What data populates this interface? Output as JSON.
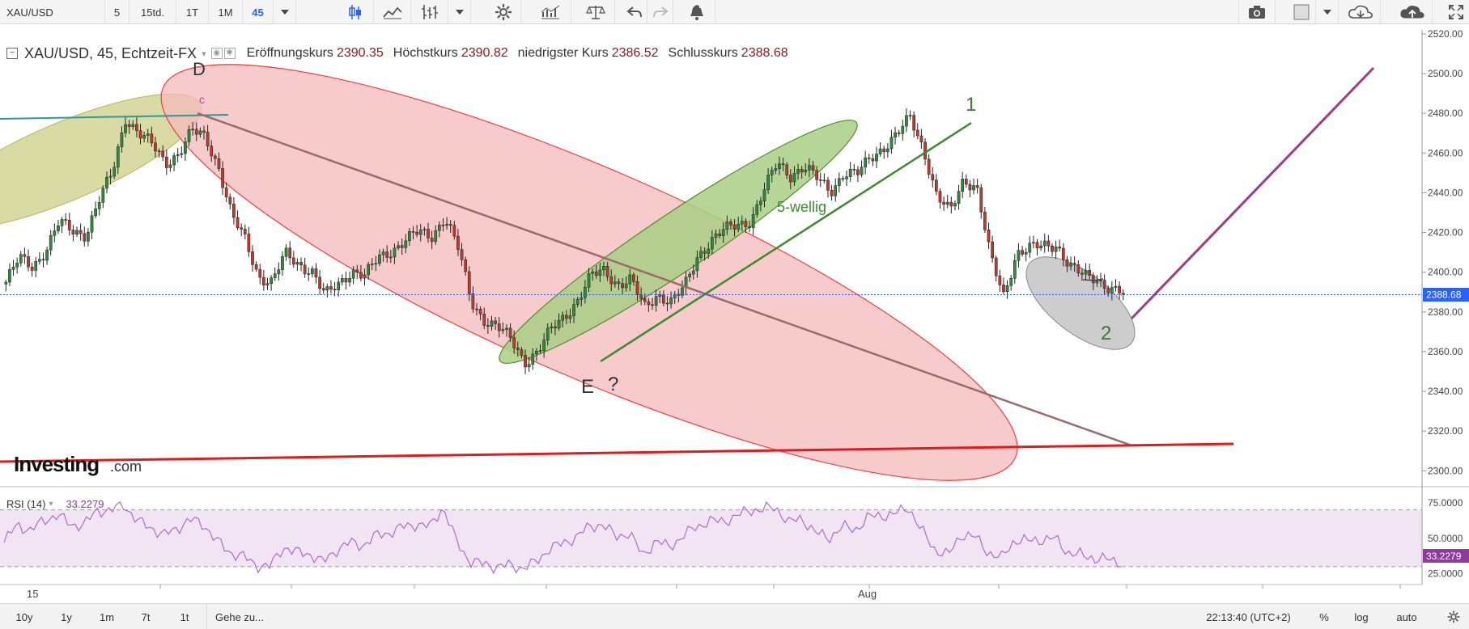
{
  "toolbar": {
    "symbol": "XAU/USD",
    "intervals": [
      "5",
      "15td.",
      "1T",
      "1M"
    ],
    "active_interval": "45",
    "icons": [
      "candles-icon",
      "line-chart-icon",
      "indicators-icon",
      "gear-icon",
      "studies-icon",
      "compare-icon",
      "undo-icon",
      "redo-icon",
      "alert-icon",
      "camera-icon",
      "layout-icon",
      "cloud-download-icon",
      "cloud-upload-icon",
      "fullscreen-icon"
    ]
  },
  "legend": {
    "symbol": "XAU/USD, 45, Echtzeit-FX",
    "open_label": "Eröffnungskurs",
    "open_value": "2390.35",
    "high_label": "Höchstkurs",
    "high_value": "2390.82",
    "low_label": "niedrigster Kurs",
    "low_value": "2386.52",
    "close_label": "Schlusskurs",
    "close_value": "2388.68"
  },
  "rsi": {
    "label": "RSI (14)",
    "value": "33.2279"
  },
  "watermark": {
    "brand": "Investing",
    "suffix": ".com"
  },
  "annotations": {
    "wave_d": "D",
    "wave_c": "c",
    "wave_e": "E",
    "question": "?",
    "wave_1": "1",
    "wave_2": "2",
    "five_wave": "5-wellig"
  },
  "bottombar": {
    "ranges": [
      "10y",
      "1y",
      "1m",
      "7t",
      "1t"
    ],
    "goto": "Gehe zu...",
    "time": "22:13:40 (UTC+2)",
    "percent": "%",
    "log": "log",
    "auto": "auto"
  },
  "colors": {
    "up_candle": "#2e8b3a",
    "down_candle": "#c0392b",
    "price_line": "#2962ff",
    "red_ellipse": "#f4b9b9",
    "green_ellipse": "#a9cf85",
    "olive_ellipse": "#cfd08a",
    "rsi_line": "#b06ad0",
    "rsi_band": "#f1e4f3",
    "support_line": "#e11b1b",
    "target_line": "#9e3c84"
  },
  "chart_data": {
    "type": "candlestick",
    "title": "XAU/USD, 45, Echtzeit-FX",
    "y_ticks": [
      "2520.00",
      "2500.00",
      "2480.00",
      "2460.00",
      "2440.00",
      "2420.00",
      "2400.00",
      "2380.00",
      "2360.00",
      "2340.00",
      "2320.00",
      "2300.00"
    ],
    "ylim": [
      2292,
      2522
    ],
    "current_price_label": "2388.68",
    "current_price": 2388.68,
    "x_ticks": [
      "15",
      "Aug"
    ],
    "close_path": [
      2395,
      2407,
      2403,
      2411,
      2425,
      2421,
      2419,
      2436,
      2450,
      2478,
      2470,
      2464,
      2455,
      2460,
      2471,
      2468,
      2453,
      2428,
      2416,
      2398,
      2395,
      2409,
      2404,
      2401,
      2388,
      2394,
      2401,
      2398,
      2407,
      2411,
      2416,
      2420,
      2418,
      2428,
      2412,
      2385,
      2376,
      2372,
      2366,
      2355,
      2360,
      2371,
      2378,
      2386,
      2398,
      2401,
      2394,
      2396,
      2382,
      2389,
      2385,
      2392,
      2408,
      2416,
      2421,
      2424,
      2426,
      2441,
      2455,
      2449,
      2453,
      2447,
      2441,
      2450,
      2449,
      2458,
      2463,
      2469,
      2478,
      2462,
      2438,
      2430,
      2447,
      2443,
      2408,
      2388,
      2410,
      2412,
      2413,
      2414,
      2403,
      2398,
      2397,
      2392,
      2389
    ],
    "wave_labels": {
      "D": 2483,
      "E": 2355,
      "1": 2478,
      "2": 2377
    },
    "rsi": {
      "ylim": [
        18,
        84
      ],
      "y_ticks": [
        "75.0000",
        "50.0000",
        "25.0000"
      ],
      "bands": [
        70,
        30
      ],
      "current_label": "33.2279",
      "values": [
        47,
        60,
        55,
        63,
        66,
        60,
        59,
        70,
        69,
        74,
        62,
        58,
        52,
        57,
        63,
        60,
        48,
        40,
        37,
        31,
        30,
        44,
        40,
        39,
        33,
        42,
        47,
        45,
        52,
        54,
        58,
        60,
        58,
        72,
        48,
        34,
        32,
        30,
        31,
        29,
        33,
        43,
        46,
        51,
        58,
        60,
        51,
        54,
        38,
        48,
        44,
        51,
        58,
        62,
        62,
        65,
        70,
        70,
        72,
        61,
        64,
        54,
        50,
        58,
        56,
        65,
        66,
        67,
        72,
        55,
        42,
        38,
        53,
        51,
        40,
        36,
        49,
        48,
        49,
        50,
        40,
        38,
        36,
        35,
        33
      ]
    }
  }
}
